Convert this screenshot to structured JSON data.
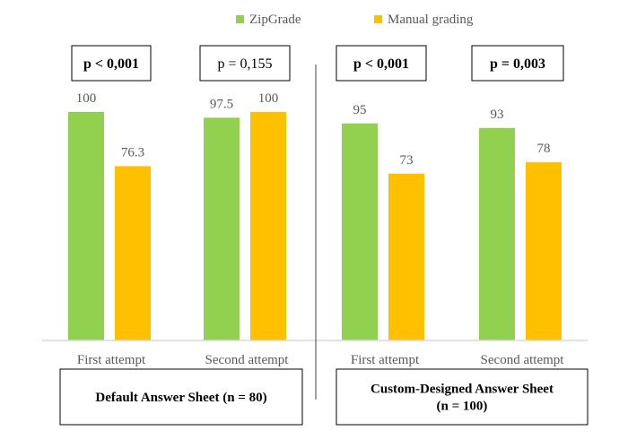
{
  "chart_data": {
    "type": "bar",
    "legend": {
      "placement": "top-center",
      "entries": [
        {
          "name": "ZipGrade",
          "color": "#92d050"
        },
        {
          "name": "Manual grading",
          "color": "#ffc000"
        }
      ]
    },
    "y_range": [
      0,
      100
    ],
    "grid": false,
    "groups": [
      {
        "label": "Default Answer Sheet (n = 80)",
        "categories": [
          {
            "label": "First attempt",
            "p_value": "p < 0,001",
            "p_bold": true,
            "values": [
              100,
              76.3
            ],
            "value_labels": [
              "100",
              "76.3"
            ]
          },
          {
            "label": "Second attempt",
            "p_value": "p = 0,155",
            "p_bold": false,
            "values": [
              97.5,
              100
            ],
            "value_labels": [
              "97.5",
              "100"
            ]
          }
        ]
      },
      {
        "label": "Custom-Designed Answer Sheet\n(n = 100)",
        "label_lines": [
          "Custom-Designed Answer Sheet",
          "(n = 100)"
        ],
        "categories": [
          {
            "label": "First attempt",
            "p_value": "p < 0,001",
            "p_bold": true,
            "values": [
              95,
              73
            ],
            "value_labels": [
              "95",
              "73"
            ]
          },
          {
            "label": "Second attempt",
            "p_value": "p = 0,003",
            "p_bold": true,
            "values": [
              93,
              78
            ],
            "value_labels": [
              "93",
              "78"
            ]
          }
        ]
      }
    ],
    "colors": {
      "baseline": "#d9d9d9",
      "divider": "#404040",
      "value_text": "#595959",
      "category_text": "#595959",
      "box_border": "#000000",
      "box_text": "#000000"
    }
  }
}
